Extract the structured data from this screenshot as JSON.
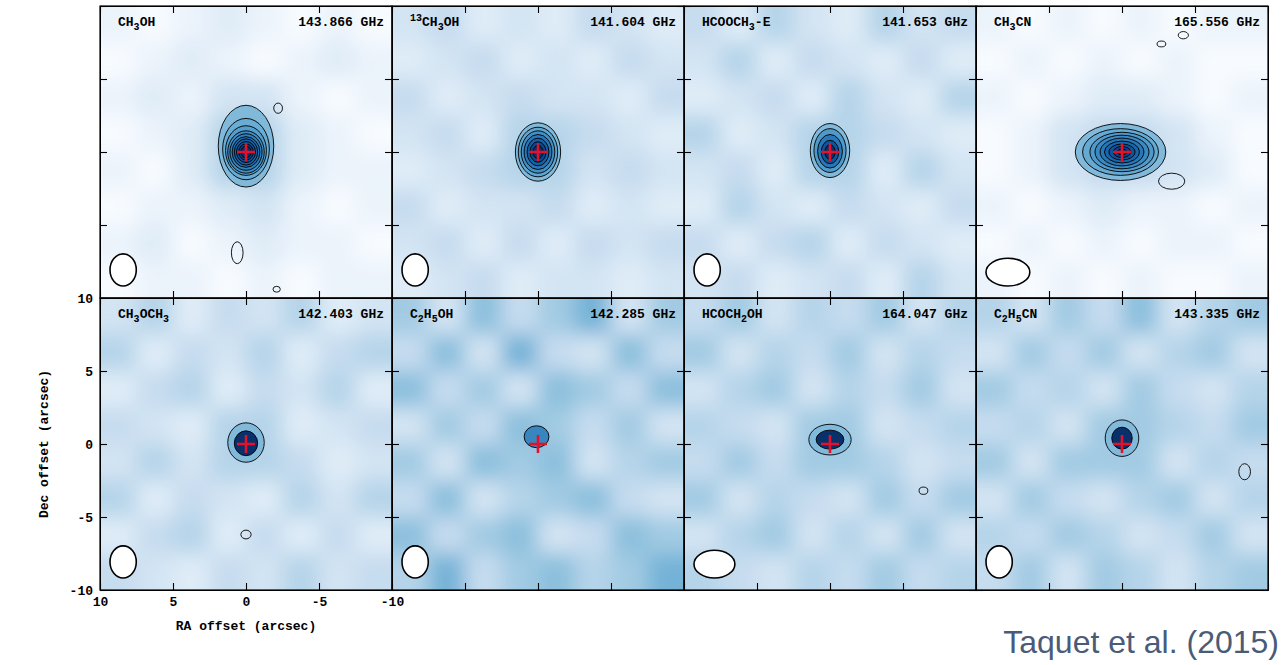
{
  "chart_data": [
    {
      "type": "heatmap",
      "title": "CH3OH",
      "subtitle": "143.866 GHz",
      "xlim": [
        10,
        -10
      ],
      "ylim": [
        -10,
        10
      ],
      "xticks": [
        10,
        5,
        0,
        -5,
        -10
      ],
      "yticks": [
        -10,
        -5,
        0,
        5,
        10
      ],
      "tick_labels": false,
      "x": [
        8.75,
        6.25,
        3.75,
        1.25,
        -1.25,
        -3.75,
        -6.25,
        -8.75
      ],
      "y": [
        8.75,
        6.25,
        3.75,
        1.25,
        -1.25,
        -3.75,
        -6.25,
        -8.75
      ],
      "z": [
        [
          0.1,
          0.0,
          0.1,
          0.2,
          0.1,
          0.0,
          0.1,
          0.0
        ],
        [
          0.0,
          0.1,
          0.2,
          0.1,
          0.0,
          0.1,
          0.2,
          0.1
        ],
        [
          0.1,
          0.2,
          0.1,
          0.3,
          0.3,
          0.1,
          0.0,
          0.1
        ],
        [
          0.0,
          0.1,
          0.2,
          0.5,
          0.5,
          0.2,
          0.1,
          0.0
        ],
        [
          0.1,
          0.0,
          0.2,
          0.5,
          0.5,
          0.2,
          0.1,
          0.1
        ],
        [
          0.0,
          0.1,
          0.1,
          0.2,
          0.3,
          0.1,
          0.0,
          0.1
        ],
        [
          0.1,
          0.2,
          0.0,
          0.1,
          0.2,
          0.1,
          0.1,
          0.0
        ],
        [
          0.0,
          0.1,
          0.1,
          0.0,
          0.1,
          0.0,
          0.1,
          0.1
        ]
      ],
      "contours": [
        [
          0,
          0.4,
          1.9,
          2.8
        ],
        [
          0,
          0.2,
          1.6,
          2.1
        ],
        [
          0,
          0.1,
          1.4,
          1.7
        ],
        [
          0,
          0,
          1.25,
          1.45
        ],
        [
          0,
          0,
          1.1,
          1.25
        ],
        [
          0,
          0,
          0.95,
          1.05
        ],
        [
          0,
          0,
          0.8,
          0.9
        ],
        [
          0,
          0,
          0.65,
          0.72
        ],
        [
          0,
          0,
          0.5,
          0.55
        ],
        [
          0,
          0,
          0.35,
          0.4
        ]
      ],
      "peaks": [
        [
          -2.2,
          3.0,
          0.3,
          0.35
        ],
        [
          0.6,
          -6.9,
          0.4,
          0.75
        ],
        [
          -2.1,
          -9.4,
          0.25,
          0.2
        ]
      ],
      "beam": [
        1.8,
        2.2
      ],
      "source": [
        0,
        0
      ],
      "marker": "plus"
    },
    {
      "type": "heatmap",
      "title": "13CH3OH",
      "subtitle": "141.604 GHz",
      "xlim": [
        10,
        -10
      ],
      "ylim": [
        -10,
        10
      ],
      "xticks": [
        10,
        5,
        0,
        -5,
        -10
      ],
      "yticks": [
        -10,
        -5,
        0,
        5,
        10
      ],
      "tick_labels": false,
      "x": [
        8.75,
        6.25,
        3.75,
        1.25,
        -1.25,
        -3.75,
        -6.25,
        -8.75
      ],
      "y": [
        8.75,
        6.25,
        3.75,
        1.25,
        -1.25,
        -3.75,
        -6.25,
        -8.75
      ],
      "z": [
        [
          0.3,
          0.4,
          0.2,
          0.3,
          0.2,
          0.4,
          0.3,
          0.2
        ],
        [
          0.2,
          0.3,
          0.4,
          0.2,
          0.3,
          0.2,
          0.4,
          0.3
        ],
        [
          0.4,
          0.2,
          0.3,
          0.4,
          0.3,
          0.3,
          0.2,
          0.4
        ],
        [
          0.3,
          0.4,
          0.2,
          0.5,
          0.5,
          0.4,
          0.3,
          0.2
        ],
        [
          0.2,
          0.3,
          0.4,
          0.5,
          0.5,
          0.3,
          0.4,
          0.3
        ],
        [
          0.4,
          0.2,
          0.3,
          0.3,
          0.4,
          0.2,
          0.3,
          0.2
        ],
        [
          0.3,
          0.4,
          0.2,
          0.4,
          0.2,
          0.4,
          0.3,
          0.4
        ],
        [
          0.2,
          0.3,
          0.4,
          0.2,
          0.3,
          0.3,
          0.2,
          0.3
        ]
      ],
      "contours": [
        [
          0,
          0,
          1.55,
          2.0
        ],
        [
          0,
          0,
          1.35,
          1.7
        ],
        [
          0,
          0,
          1.15,
          1.45
        ],
        [
          0,
          0,
          0.95,
          1.2
        ],
        [
          0,
          0,
          0.75,
          0.95
        ],
        [
          0,
          0,
          0.55,
          0.7
        ],
        [
          0,
          0,
          0.35,
          0.45
        ]
      ],
      "peaks": [],
      "beam": [
        1.8,
        2.2
      ],
      "source": [
        0,
        0
      ],
      "marker": "plus"
    },
    {
      "type": "heatmap",
      "title": "HCOOCH3-E",
      "subtitle": "141.653 GHz",
      "xlim": [
        10,
        -10
      ],
      "ylim": [
        -10,
        10
      ],
      "xticks": [
        10,
        5,
        0,
        -5,
        -10
      ],
      "yticks": [
        -10,
        -5,
        0,
        5,
        10
      ],
      "tick_labels": false,
      "x": [
        8.75,
        6.25,
        3.75,
        1.25,
        -1.25,
        -3.75,
        -6.25,
        -8.75
      ],
      "y": [
        8.75,
        6.25,
        3.75,
        1.25,
        -1.25,
        -3.75,
        -6.25,
        -8.75
      ],
      "z": [
        [
          0.4,
          0.2,
          0.5,
          0.3,
          0.2,
          0.5,
          0.3,
          0.4
        ],
        [
          0.3,
          0.5,
          0.2,
          0.4,
          0.3,
          0.2,
          0.4,
          0.2
        ],
        [
          0.2,
          0.3,
          0.4,
          0.2,
          0.5,
          0.3,
          0.2,
          0.5
        ],
        [
          0.5,
          0.2,
          0.3,
          0.5,
          0.5,
          0.4,
          0.3,
          0.2
        ],
        [
          0.3,
          0.4,
          0.2,
          0.5,
          0.5,
          0.2,
          0.5,
          0.3
        ],
        [
          0.2,
          0.5,
          0.3,
          0.2,
          0.4,
          0.3,
          0.2,
          0.4
        ],
        [
          0.4,
          0.2,
          0.4,
          0.5,
          0.2,
          0.4,
          0.3,
          0.2
        ],
        [
          0.3,
          0.4,
          0.2,
          0.3,
          0.4,
          0.2,
          0.5,
          0.3
        ]
      ],
      "contours": [
        [
          0,
          0.1,
          1.35,
          1.85
        ],
        [
          0,
          0.1,
          1.1,
          1.5
        ],
        [
          0,
          0.05,
          0.85,
          1.15
        ],
        [
          0,
          0,
          0.6,
          0.8
        ],
        [
          0,
          0,
          0.35,
          0.5
        ]
      ],
      "peaks": [],
      "beam": [
        1.8,
        2.2
      ],
      "source": [
        0,
        0
      ],
      "marker": "plus"
    },
    {
      "type": "heatmap",
      "title": "CH3CN",
      "subtitle": "165.556 GHz",
      "xlim": [
        10,
        -10
      ],
      "ylim": [
        -10,
        10
      ],
      "xticks": [
        10,
        5,
        0,
        -5,
        -10
      ],
      "yticks": [
        -10,
        -5,
        0,
        5,
        10
      ],
      "tick_labels": false,
      "x": [
        8.75,
        6.25,
        3.75,
        1.25,
        -1.25,
        -3.75,
        -6.25,
        -8.75
      ],
      "y": [
        8.75,
        6.25,
        3.75,
        1.25,
        -1.25,
        -3.75,
        -6.25,
        -8.75
      ],
      "z": [
        [
          0.1,
          0.0,
          0.1,
          0.0,
          0.1,
          0.0,
          0.1,
          0.1
        ],
        [
          0.0,
          0.1,
          0.0,
          0.1,
          0.0,
          0.1,
          0.0,
          0.0
        ],
        [
          0.1,
          0.0,
          0.1,
          0.2,
          0.2,
          0.1,
          0.0,
          0.1
        ],
        [
          0.0,
          0.1,
          0.3,
          0.4,
          0.4,
          0.3,
          0.1,
          0.0
        ],
        [
          0.0,
          0.1,
          0.3,
          0.4,
          0.4,
          0.3,
          0.2,
          0.0
        ],
        [
          0.1,
          0.0,
          0.1,
          0.2,
          0.1,
          0.1,
          0.0,
          0.1
        ],
        [
          0.0,
          0.1,
          0.0,
          0.1,
          0.0,
          0.1,
          0.1,
          0.0
        ],
        [
          0.1,
          0.0,
          0.1,
          0.0,
          0.1,
          0.0,
          0.0,
          0.1
        ]
      ],
      "contours": [
        [
          0.1,
          0,
          3.1,
          1.95
        ],
        [
          0.1,
          0,
          2.6,
          1.6
        ],
        [
          0,
          0,
          2.2,
          1.35
        ],
        [
          0,
          0,
          1.85,
          1.15
        ],
        [
          0,
          0,
          1.5,
          0.95
        ],
        [
          0,
          0,
          1.2,
          0.75
        ],
        [
          0,
          0,
          0.9,
          0.55
        ],
        [
          0,
          0,
          0.6,
          0.38
        ],
        [
          0,
          0,
          0.3,
          0.2
        ]
      ],
      "peaks": [
        [
          -3.4,
          -2.0,
          0.9,
          0.55
        ],
        [
          -2.7,
          7.4,
          0.3,
          0.2
        ],
        [
          -4.2,
          8.0,
          0.35,
          0.25
        ]
      ],
      "beam": [
        3.0,
        1.9
      ],
      "source": [
        0,
        0
      ],
      "marker": "plus"
    },
    {
      "type": "heatmap",
      "title": "CH3OCH3",
      "subtitle": "142.403 GHz",
      "xlim": [
        10,
        -10
      ],
      "ylim": [
        -10,
        10
      ],
      "xticks": [
        10,
        5,
        0,
        -5,
        -10
      ],
      "yticks": [
        -10,
        -5,
        0,
        5,
        10
      ],
      "xlabel": "RA offset (arcsec)",
      "ylabel": "Dec offset (arcsec)",
      "x": [
        8.75,
        6.25,
        3.75,
        1.25,
        -1.25,
        -3.75,
        -6.25,
        -8.75
      ],
      "y": [
        8.75,
        6.25,
        3.75,
        1.25,
        -1.25,
        -3.75,
        -6.25,
        -8.75
      ],
      "z": [
        [
          0.3,
          0.5,
          0.2,
          0.4,
          0.3,
          0.5,
          0.2,
          0.3
        ],
        [
          0.5,
          0.2,
          0.4,
          0.3,
          0.5,
          0.2,
          0.4,
          0.5
        ],
        [
          0.2,
          0.4,
          0.5,
          0.2,
          0.4,
          0.3,
          0.5,
          0.2
        ],
        [
          0.4,
          0.3,
          0.2,
          0.5,
          0.5,
          0.2,
          0.3,
          0.4
        ],
        [
          0.3,
          0.5,
          0.3,
          0.5,
          0.5,
          0.4,
          0.2,
          0.3
        ],
        [
          0.5,
          0.2,
          0.4,
          0.3,
          0.2,
          0.5,
          0.3,
          0.5
        ],
        [
          0.2,
          0.4,
          0.5,
          0.2,
          0.4,
          0.2,
          0.4,
          0.2
        ],
        [
          0.4,
          0.3,
          0.2,
          0.4,
          0.3,
          0.5,
          0.3,
          0.4
        ]
      ],
      "contours": [
        [
          0,
          0.1,
          1.25,
          1.35
        ],
        [
          0,
          0.05,
          0.8,
          0.85
        ]
      ],
      "peaks": [
        [
          0,
          -6.2,
          0.35,
          0.3
        ]
      ],
      "beam": [
        1.8,
        2.2
      ],
      "source": [
        0,
        0
      ],
      "marker": "plus"
    },
    {
      "type": "heatmap",
      "title": "C2H5OH",
      "subtitle": "142.285 GHz",
      "xlim": [
        10,
        -10
      ],
      "ylim": [
        -10,
        10
      ],
      "xticks": [
        10,
        5,
        0,
        -5,
        -10
      ],
      "yticks": [
        -10,
        -5,
        0,
        5,
        10
      ],
      "tick_labels": false,
      "x": [
        8.75,
        6.25,
        3.75,
        1.25,
        -1.25,
        -3.75,
        -6.25,
        -8.75
      ],
      "y": [
        8.75,
        6.25,
        3.75,
        1.25,
        -1.25,
        -3.75,
        -6.25,
        -8.75
      ],
      "z": [
        [
          0.6,
          0.3,
          0.7,
          0.4,
          0.6,
          0.8,
          0.3,
          0.6
        ],
        [
          0.4,
          0.7,
          0.3,
          0.8,
          0.4,
          0.3,
          0.7,
          0.4
        ],
        [
          0.7,
          0.4,
          0.6,
          0.3,
          0.7,
          0.6,
          0.4,
          0.7
        ],
        [
          0.3,
          0.6,
          0.4,
          0.7,
          0.6,
          0.4,
          0.6,
          0.3
        ],
        [
          0.6,
          0.3,
          0.7,
          0.6,
          0.7,
          0.3,
          0.5,
          0.6
        ],
        [
          0.4,
          0.7,
          0.3,
          0.5,
          0.6,
          0.7,
          0.4,
          0.3
        ],
        [
          0.7,
          0.4,
          0.6,
          0.7,
          0.3,
          0.4,
          0.7,
          0.6
        ],
        [
          0.5,
          0.8,
          0.4,
          0.6,
          0.7,
          0.5,
          0.6,
          0.8
        ]
      ],
      "contours": [
        [
          0.1,
          0.5,
          0.85,
          0.75
        ]
      ],
      "peaks": [],
      "beam": [
        1.8,
        2.2
      ],
      "source": [
        0,
        0
      ],
      "marker": "plus"
    },
    {
      "type": "heatmap",
      "title": "HCOCH2OH",
      "subtitle": "164.047 GHz",
      "xlim": [
        10,
        -10
      ],
      "ylim": [
        -10,
        10
      ],
      "xticks": [
        10,
        5,
        0,
        -5,
        -10
      ],
      "yticks": [
        -10,
        -5,
        0,
        5,
        10
      ],
      "tick_labels": false,
      "x": [
        8.75,
        6.25,
        3.75,
        1.25,
        -1.25,
        -3.75,
        -6.25,
        -8.75
      ],
      "y": [
        8.75,
        6.25,
        3.75,
        1.25,
        -1.25,
        -3.75,
        -6.25,
        -8.75
      ],
      "z": [
        [
          0.4,
          0.6,
          0.3,
          0.5,
          0.4,
          0.6,
          0.3,
          0.5
        ],
        [
          0.6,
          0.3,
          0.5,
          0.4,
          0.6,
          0.3,
          0.5,
          0.4
        ],
        [
          0.3,
          0.5,
          0.6,
          0.3,
          0.5,
          0.4,
          0.6,
          0.3
        ],
        [
          0.5,
          0.4,
          0.3,
          0.6,
          0.6,
          0.3,
          0.4,
          0.5
        ],
        [
          0.4,
          0.6,
          0.4,
          0.6,
          0.6,
          0.5,
          0.3,
          0.4
        ],
        [
          0.6,
          0.3,
          0.5,
          0.4,
          0.3,
          0.6,
          0.4,
          0.6
        ],
        [
          0.3,
          0.5,
          0.6,
          0.3,
          0.5,
          0.3,
          0.6,
          0.3
        ],
        [
          0.5,
          0.4,
          0.3,
          0.5,
          0.4,
          0.6,
          0.4,
          0.5
        ]
      ],
      "contours": [
        [
          0,
          0.3,
          1.45,
          1.05
        ],
        [
          0,
          0.3,
          0.95,
          0.65
        ]
      ],
      "peaks": [
        [
          -6.4,
          -3.2,
          0.3,
          0.25
        ]
      ],
      "beam": [
        2.8,
        1.9
      ],
      "source": [
        0,
        0
      ],
      "marker": "plus"
    },
    {
      "type": "heatmap",
      "title": "C2H5CN",
      "subtitle": "143.335 GHz",
      "xlim": [
        10,
        -10
      ],
      "ylim": [
        -10,
        10
      ],
      "xticks": [
        10,
        5,
        0,
        -5,
        -10
      ],
      "yticks": [
        -10,
        -5,
        0,
        5,
        10
      ],
      "tick_labels": false,
      "x": [
        8.75,
        6.25,
        3.75,
        1.25,
        -1.25,
        -3.75,
        -6.25,
        -8.75
      ],
      "y": [
        8.75,
        6.25,
        3.75,
        1.25,
        -1.25,
        -3.75,
        -6.25,
        -8.75
      ],
      "z": [
        [
          0.5,
          0.3,
          0.6,
          0.4,
          0.7,
          0.3,
          0.5,
          0.6
        ],
        [
          0.3,
          0.6,
          0.4,
          0.6,
          0.3,
          0.5,
          0.6,
          0.3
        ],
        [
          0.6,
          0.4,
          0.5,
          0.3,
          0.6,
          0.4,
          0.3,
          0.5
        ],
        [
          0.4,
          0.5,
          0.3,
          0.6,
          0.6,
          0.5,
          0.4,
          0.6
        ],
        [
          0.6,
          0.3,
          0.6,
          0.6,
          0.6,
          0.3,
          0.5,
          0.4
        ],
        [
          0.3,
          0.6,
          0.4,
          0.3,
          0.5,
          0.6,
          0.3,
          0.5
        ],
        [
          0.5,
          0.4,
          0.6,
          0.5,
          0.3,
          0.4,
          0.6,
          0.3
        ],
        [
          0.4,
          0.6,
          0.3,
          0.6,
          0.5,
          0.3,
          0.5,
          0.6
        ]
      ],
      "contours": [
        [
          0,
          0.4,
          1.15,
          1.25
        ],
        [
          0,
          0.4,
          0.7,
          0.75
        ]
      ],
      "peaks": [
        [
          -8.4,
          -1.9,
          0.4,
          0.55
        ]
      ],
      "beam": [
        1.8,
        2.2
      ],
      "source": [
        0,
        0
      ],
      "marker": "plus",
      "annotation": "Taquet et al. (2015)"
    }
  ]
}
